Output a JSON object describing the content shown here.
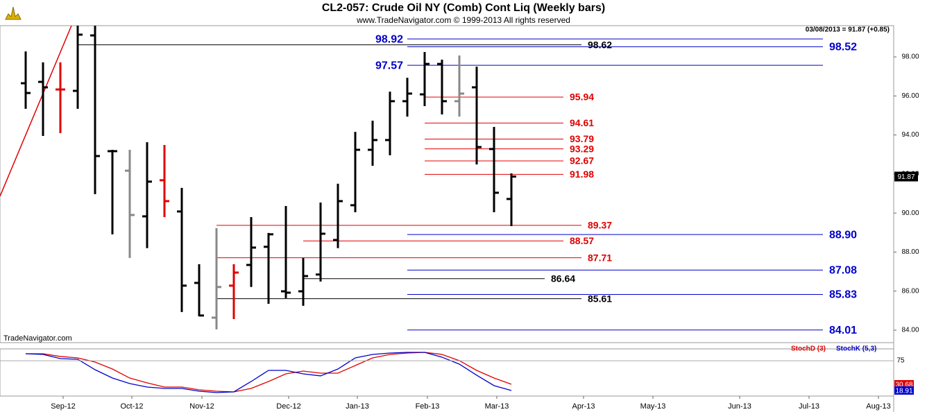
{
  "header": {
    "title": "CL2-057:  Crude Oil NY (Comb) Cont Liq  (Weekly bars)",
    "subtitle": "www.TradeNavigator.com © 1999-2013 All rights reserved",
    "quote": "03/08/2013 = 91.87 (+0.85)",
    "watermark": "TradeNavigator.com"
  },
  "chart_data": [
    {
      "type": "ohlc",
      "x": [
        0,
        1,
        2,
        3,
        4,
        5,
        6,
        7,
        8,
        9,
        10,
        11,
        12,
        13,
        14,
        15,
        16,
        17,
        18,
        19,
        20,
        21,
        22,
        23,
        24,
        25,
        26,
        27,
        28
      ],
      "open": [
        96.65,
        96.72,
        96.33,
        96.26,
        99.1,
        93.17,
        92.17,
        89.83,
        91.68,
        90.08,
        86.42,
        84.64,
        86.28,
        87.34,
        88.27,
        85.99,
        85.99,
        86.85,
        88.62,
        90.4,
        93.24,
        93.74,
        95.73,
        96.08,
        97.64,
        95.73,
        96.44,
        93.28,
        90.72
      ],
      "high": [
        98.28,
        97.72,
        97.72,
        100.0,
        100.0,
        93.24,
        93.24,
        93.63,
        93.49,
        91.29,
        87.38,
        89.23,
        87.38,
        89.79,
        88.98,
        90.36,
        87.7,
        90.54,
        91.5,
        94.16,
        94.73,
        96.22,
        96.93,
        98.25,
        97.86,
        98.07,
        97.5,
        94.41,
        92.03
      ],
      "low": [
        95.34,
        93.95,
        94.09,
        95.34,
        90.97,
        88.91,
        87.7,
        88.2,
        89.79,
        84.93,
        84.71,
        84.04,
        84.57,
        86.21,
        85.35,
        85.64,
        85.25,
        86.49,
        88.2,
        90.04,
        92.42,
        92.96,
        94.94,
        95.48,
        95.05,
        94.94,
        92.49,
        90.04,
        89.33
      ],
      "close": [
        96.15,
        96.44,
        96.33,
        99.14,
        92.92,
        93.17,
        89.9,
        91.61,
        90.61,
        86.28,
        84.75,
        86.21,
        86.95,
        88.23,
        88.91,
        85.92,
        86.77,
        88.94,
        90.61,
        93.24,
        93.74,
        95.73,
        96.12,
        97.64,
        95.73,
        96.12,
        93.38,
        91.04,
        91.87
      ],
      "colors": [
        "#000000",
        "#000000",
        "#e00000",
        "#000000",
        "#000000",
        "#000000",
        "#888888",
        "#000000",
        "#e00000",
        "#000000",
        "#000000",
        "#888888",
        "#e00000",
        "#000000",
        "#000000",
        "#000000",
        "#000000",
        "#000000",
        "#000000",
        "#000000",
        "#000000",
        "#000000",
        "#000000",
        "#000000",
        "#000000",
        "#888888",
        "#000000",
        "#000000",
        "#000000"
      ],
      "xlim": [
        -1.48,
        50.04
      ],
      "ylim": [
        83.36,
        99.6
      ],
      "yticks": [
        {
          "value": 84,
          "label": "84.00"
        },
        {
          "value": 86,
          "label": "86.00"
        },
        {
          "value": 88,
          "label": "88.00"
        },
        {
          "value": 90,
          "label": "90.00"
        },
        {
          "value": 92,
          "label": "92.00"
        },
        {
          "value": 94,
          "label": "94.00"
        },
        {
          "value": 96,
          "label": "96.00"
        },
        {
          "value": 98,
          "label": "98.00"
        }
      ],
      "trendline": {
        "x": [
          -1.48,
          2.64
        ],
        "y": [
          90.86,
          99.6
        ],
        "color": "#e00000"
      },
      "levels": [
        {
          "value": 98.92,
          "label": "98.92",
          "color": "#0000cc",
          "from": 22,
          "to": 45.96,
          "label_side": "left"
        },
        {
          "value": 98.62,
          "label": "98.62",
          "color": "#000000",
          "from": 3,
          "to": 32.04,
          "label_side": "right"
        },
        {
          "value": 98.52,
          "label": "98.52",
          "color": "#0000cc",
          "from": 22,
          "to": 45.96,
          "label_side": "right"
        },
        {
          "value": 97.57,
          "label": "97.57",
          "color": "#0000cc",
          "from": 22,
          "to": 45.96,
          "label_side": "left"
        },
        {
          "value": 95.94,
          "label": "95.94",
          "color": "#e00000",
          "from": 23,
          "to": 31,
          "label_side": "right"
        },
        {
          "value": 94.61,
          "label": "94.61",
          "color": "#e00000",
          "from": 23,
          "to": 31,
          "label_side": "right"
        },
        {
          "value": 93.79,
          "label": "93.79",
          "color": "#e00000",
          "from": 23,
          "to": 31,
          "label_side": "right"
        },
        {
          "value": 93.29,
          "label": "93.29",
          "color": "#e00000",
          "from": 23,
          "to": 31,
          "label_side": "right"
        },
        {
          "value": 92.67,
          "label": "92.67",
          "color": "#e00000",
          "from": 23,
          "to": 31,
          "label_side": "right"
        },
        {
          "value": 91.98,
          "label": "91.98",
          "color": "#e00000",
          "from": 23,
          "to": 31,
          "label_side": "right"
        },
        {
          "value": 89.37,
          "label": "89.37",
          "color": "#e00000",
          "from": 11,
          "to": 32.04,
          "label_side": "right"
        },
        {
          "value": 88.9,
          "label": "88.90",
          "color": "#0000cc",
          "from": 22,
          "to": 45.96,
          "label_side": "right"
        },
        {
          "value": 88.57,
          "label": "88.57",
          "color": "#e00000",
          "from": 16,
          "to": 31,
          "label_side": "right"
        },
        {
          "value": 87.71,
          "label": "87.71",
          "color": "#e00000",
          "from": 11,
          "to": 32.04,
          "label_side": "right"
        },
        {
          "value": 87.08,
          "label": "87.08",
          "color": "#0000cc",
          "from": 22,
          "to": 45.96,
          "label_side": "right"
        },
        {
          "value": 86.64,
          "label": "86.64",
          "color": "#000000",
          "from": 16,
          "to": 29.92,
          "label_side": "right"
        },
        {
          "value": 85.83,
          "label": "85.83",
          "color": "#0000cc",
          "from": 22,
          "to": 45.96,
          "label_side": "right"
        },
        {
          "value": 85.61,
          "label": "85.61",
          "color": "#000000",
          "from": 11,
          "to": 32.04,
          "label_side": "right"
        },
        {
          "value": 84.01,
          "label": "84.01",
          "color": "#0000cc",
          "from": 22,
          "to": 45.96,
          "label_side": "right"
        }
      ]
    },
    {
      "type": "line",
      "x": [
        0,
        1,
        2,
        3,
        4,
        5,
        6,
        7,
        8,
        9,
        10,
        11,
        12,
        13,
        14,
        15,
        16,
        17,
        18,
        19,
        20,
        21,
        22,
        23,
        24,
        25,
        26,
        27,
        28
      ],
      "series": [
        {
          "name": "StochD (3)",
          "color": "#e00000",
          "values": [
            88.2,
            88.2,
            83.0,
            80.3,
            72.5,
            59.4,
            42.4,
            33.3,
            25.4,
            25.4,
            20.2,
            17.6,
            16.3,
            22.8,
            35.9,
            50.3,
            55.5,
            51.6,
            51.6,
            65.9,
            80.3,
            86.9,
            89.5,
            90.8,
            86.9,
            75.1,
            56.8,
            42.4,
            30.68
          ]
        },
        {
          "name": "StochK (5,3)",
          "color": "#0000cc",
          "values": [
            88.2,
            86.9,
            79.0,
            77.7,
            58.1,
            42.4,
            32.0,
            25.4,
            22.8,
            22.8,
            17.6,
            15.0,
            16.3,
            35.9,
            56.8,
            56.8,
            50.3,
            46.4,
            59.4,
            80.3,
            86.9,
            89.5,
            90.8,
            90.8,
            81.7,
            68.6,
            47.7,
            28.1,
            18.91
          ]
        }
      ],
      "xlim": [
        -1.48,
        50.04
      ],
      "ylim": [
        8.45,
        97.3
      ],
      "yticks": [
        75
      ],
      "xticks": [
        {
          "value": 2.16,
          "label": "Sep-12"
        },
        {
          "value": 6.12,
          "label": "Oct-12"
        },
        {
          "value": 10.16,
          "label": "Nov-12"
        },
        {
          "value": 15.16,
          "label": "Dec-12"
        },
        {
          "value": 19.12,
          "label": "Jan-13"
        },
        {
          "value": 23.16,
          "label": "Feb-13"
        },
        {
          "value": 27.16,
          "label": "Mar-13"
        },
        {
          "value": 32.16,
          "label": "Apr-13"
        },
        {
          "value": 36.16,
          "label": "May-13"
        },
        {
          "value": 41.16,
          "label": "Jun-13"
        },
        {
          "value": 45.16,
          "label": "Jul-13"
        },
        {
          "value": 49.16,
          "label": "Aug-13"
        }
      ]
    }
  ]
}
